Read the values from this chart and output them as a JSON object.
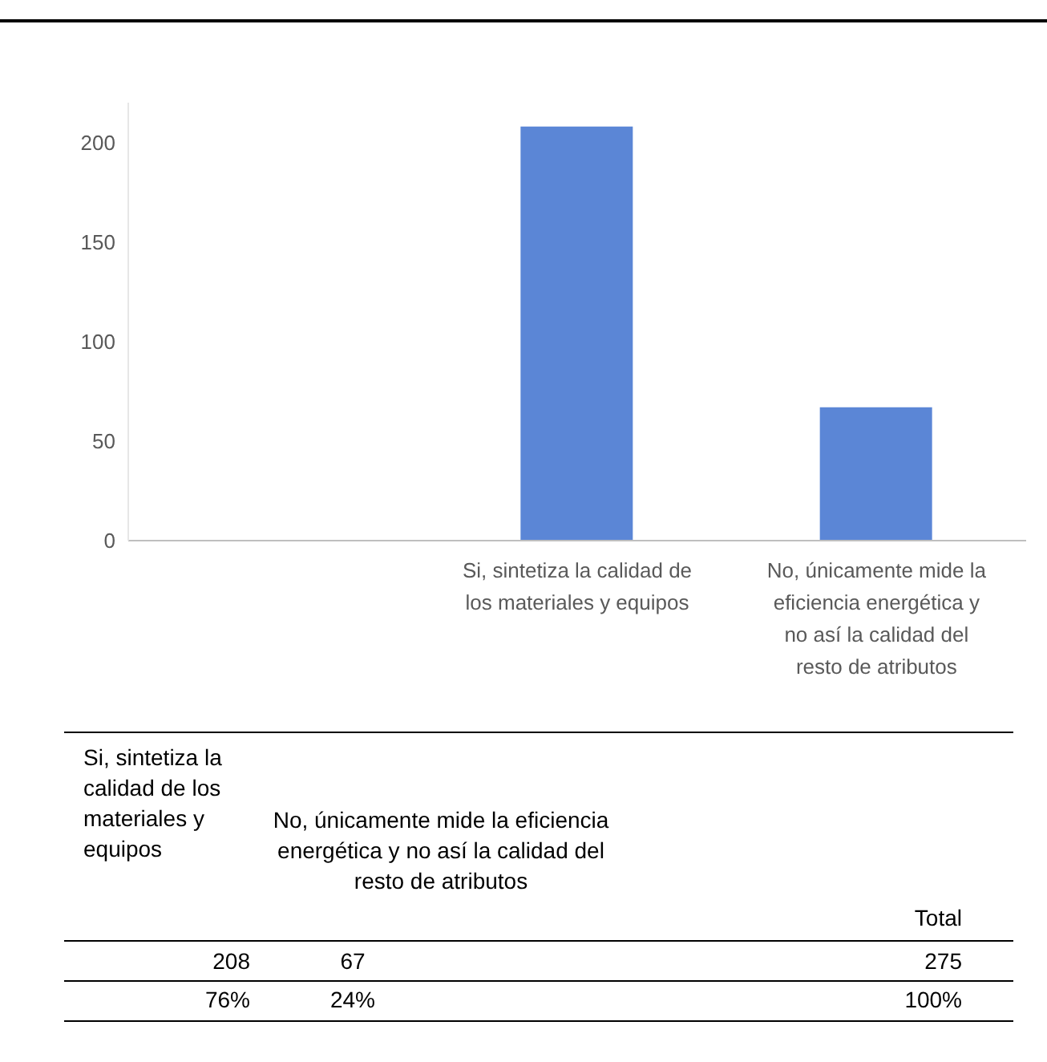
{
  "chart_data": {
    "type": "bar",
    "categories": [
      null,
      "Si, sintetiza la calidad de los materiales y equipos",
      "No, únicamente mide la eficiencia energética y no así la calidad del resto de atributos"
    ],
    "values": [
      null,
      208,
      67
    ],
    "color": "#5b86d6",
    "ylim": [
      0,
      220
    ],
    "yticks": [
      0,
      50,
      100,
      150,
      200
    ],
    "annotations": [
      "Total",
      "208",
      "67",
      "275",
      "76%",
      "24%",
      "100%"
    ]
  }
}
